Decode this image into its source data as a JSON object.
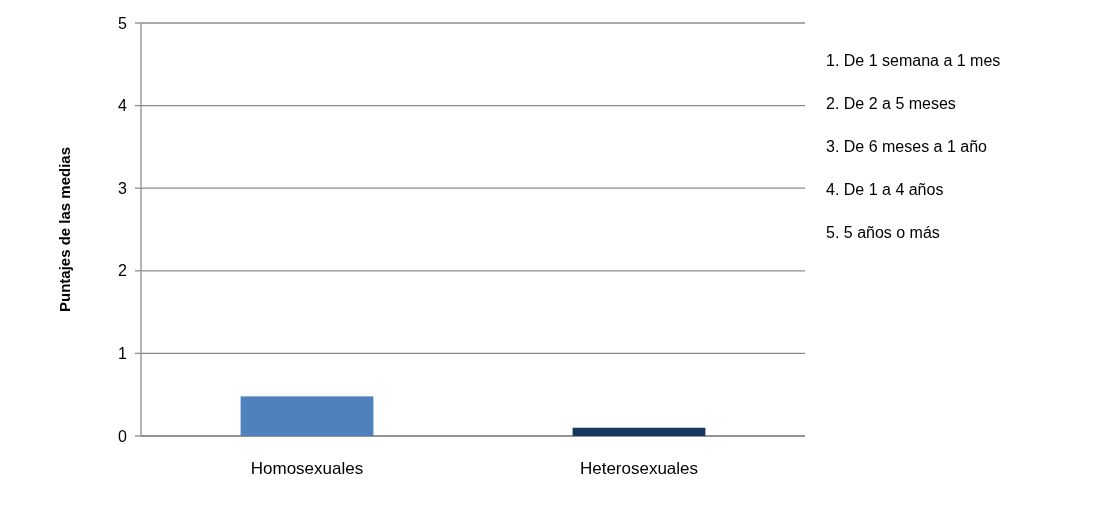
{
  "chart_data": {
    "type": "bar",
    "ylabel": "Puntajes de las medias",
    "categories": [
      "Homosexuales",
      "Heterosexuales"
    ],
    "values": [
      0.48,
      0.1
    ],
    "colors": [
      "#4f81bd",
      "#17375e"
    ],
    "ylim": [
      0,
      5
    ],
    "yticks": [
      0,
      1,
      2,
      3,
      4,
      5
    ],
    "grid": "y",
    "annotations": [
      "1. De 1 semana a 1 mes",
      "2. De 2 a 5 meses",
      "3. De 6 meses a 1 año",
      "4. De 1 a 4 años",
      "5. 5 años o más"
    ]
  }
}
